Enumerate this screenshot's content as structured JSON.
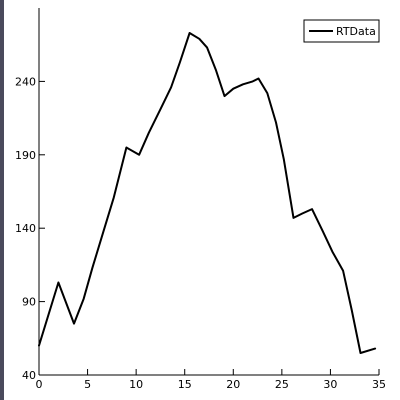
{
  "chart_data": {
    "type": "line",
    "title": "",
    "xlabel": "",
    "ylabel": "",
    "xlim": [
      0,
      35
    ],
    "ylim": [
      40,
      290
    ],
    "x_ticks": [
      0,
      5,
      10,
      15,
      20,
      25,
      30,
      35
    ],
    "y_ticks": [
      40,
      90,
      140,
      190,
      240
    ],
    "grid": false,
    "legend_position": "top-right",
    "series": [
      {
        "name": "RTData",
        "color": "#000000",
        "x": [
          0,
          2,
          3.6,
          4.6,
          5.5,
          6.6,
          7.7,
          9,
          10.3,
          11.3,
          12.5,
          13.6,
          14.5,
          15.5,
          16.5,
          17.3,
          18.2,
          19.1,
          20,
          21,
          22,
          22.6,
          23.5,
          24.4,
          25.2,
          26.2,
          27.1,
          28.1,
          29.2,
          30.2,
          31.3,
          32.2,
          33.1,
          34.6
        ],
        "y": [
          60,
          103,
          75,
          92,
          113,
          137,
          161,
          195,
          190,
          205,
          221,
          236,
          253,
          273,
          269,
          263,
          248,
          230,
          235,
          238,
          240,
          242,
          232,
          212,
          187,
          147,
          150,
          153,
          138,
          124,
          111,
          84,
          55,
          58
        ]
      }
    ]
  }
}
